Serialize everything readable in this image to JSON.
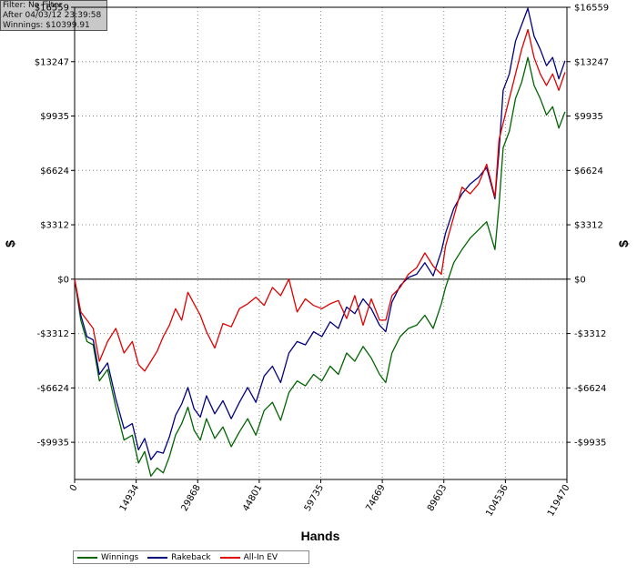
{
  "info": {
    "filter": "Filter: No Filter",
    "after": "After 04/03/12 23:39:58",
    "winnings": "Winnings: $10399.91"
  },
  "chart_data": {
    "type": "line",
    "xlabel": "Hands",
    "ylabel": "$",
    "xlim": [
      0,
      119470
    ],
    "ylim": [
      -12200,
      16559
    ],
    "x_ticks": [
      0,
      14934,
      29868,
      44801,
      59735,
      74669,
      89603,
      104536,
      119470
    ],
    "y_ticks": [
      16559,
      13247,
      9935,
      6624,
      3312,
      0,
      -3312,
      -6624,
      -9935
    ],
    "y_tick_labels": [
      "$16559",
      "$13247",
      "$9935",
      "$6624",
      "$3312",
      "$0",
      "-$3312",
      "-$6624",
      "-$9935"
    ],
    "grid": true,
    "legend_position": "bottom-left",
    "series": [
      {
        "name": "Winnings",
        "color": "#006400",
        "x": [
          0,
          1500,
          3000,
          4500,
          6000,
          8000,
          10000,
          12000,
          14000,
          15500,
          17000,
          18500,
          20000,
          21500,
          23000,
          24500,
          26000,
          27500,
          29000,
          30500,
          32000,
          34000,
          36000,
          38000,
          40000,
          42000,
          44000,
          46000,
          48000,
          50000,
          52000,
          54000,
          56000,
          58000,
          60000,
          62000,
          64000,
          66000,
          68000,
          70000,
          72000,
          74000,
          75500,
          77000,
          79000,
          81000,
          83000,
          85000,
          87000,
          89000,
          90000,
          92000,
          94000,
          96000,
          98000,
          100000,
          102000,
          103000,
          104000,
          105500,
          107000,
          108500,
          110000,
          111500,
          113000,
          114500,
          116000,
          117500,
          119000
        ],
        "values": [
          0,
          -2500,
          -3800,
          -4000,
          -6200,
          -5500,
          -7800,
          -9800,
          -9500,
          -11200,
          -10500,
          -12000,
          -11500,
          -11800,
          -10800,
          -9500,
          -8800,
          -7800,
          -9200,
          -9800,
          -8500,
          -9700,
          -9000,
          -10200,
          -9300,
          -8500,
          -9500,
          -8000,
          -7500,
          -8600,
          -6900,
          -6200,
          -6500,
          -5800,
          -6200,
          -5300,
          -5800,
          -4500,
          -5000,
          -4100,
          -4800,
          -5800,
          -6300,
          -4500,
          -3500,
          -3000,
          -2800,
          -2200,
          -3000,
          -1500,
          -500,
          1000,
          1800,
          2500,
          3000,
          3500,
          1800,
          4500,
          8000,
          9000,
          11000,
          12000,
          13500,
          11800,
          11000,
          10000,
          10500,
          9200,
          10200
        ]
      },
      {
        "name": "Rakeback",
        "color": "#00007f",
        "x": [
          0,
          1500,
          3000,
          4500,
          6000,
          8000,
          10000,
          12000,
          14000,
          15500,
          17000,
          18500,
          20000,
          21500,
          23000,
          24500,
          26000,
          27500,
          29000,
          30500,
          32000,
          34000,
          36000,
          38000,
          40000,
          42000,
          44000,
          46000,
          48000,
          50000,
          52000,
          54000,
          56000,
          58000,
          60000,
          62000,
          64000,
          66000,
          68000,
          70000,
          72000,
          74000,
          75500,
          77000,
          79000,
          81000,
          83000,
          85000,
          87000,
          89000,
          90000,
          92000,
          94000,
          96000,
          98000,
          100000,
          102000,
          103000,
          104000,
          105500,
          107000,
          108500,
          110000,
          111500,
          113000,
          114500,
          116000,
          117500,
          119000
        ],
        "values": [
          0,
          -2200,
          -3500,
          -3700,
          -5800,
          -5100,
          -7300,
          -9100,
          -8800,
          -10400,
          -9700,
          -11000,
          -10500,
          -10600,
          -9600,
          -8300,
          -7600,
          -6600,
          -7900,
          -8400,
          -7100,
          -8200,
          -7400,
          -8500,
          -7500,
          -6600,
          -7500,
          -5900,
          -5300,
          -6300,
          -4500,
          -3800,
          -4000,
          -3200,
          -3500,
          -2600,
          -3000,
          -1700,
          -2100,
          -1200,
          -1800,
          -2800,
          -3200,
          -1400,
          -400,
          100,
          300,
          1000,
          200,
          1700,
          2800,
          4300,
          5200,
          5800,
          6200,
          6800,
          4900,
          7800,
          11500,
          12500,
          14500,
          15500,
          16500,
          14800,
          14000,
          13000,
          13500,
          12200,
          13300
        ]
      },
      {
        "name": "All-In EV",
        "color": "#e00000",
        "x": [
          0,
          1500,
          3000,
          4500,
          6000,
          8000,
          10000,
          12000,
          14000,
          15500,
          17000,
          18500,
          20000,
          21500,
          23000,
          24500,
          26000,
          27500,
          29000,
          30500,
          32000,
          34000,
          36000,
          38000,
          40000,
          42000,
          44000,
          46000,
          48000,
          50000,
          52000,
          54000,
          56000,
          58000,
          60000,
          62000,
          64000,
          66000,
          68000,
          70000,
          72000,
          74000,
          75500,
          77000,
          79000,
          81000,
          83000,
          85000,
          87000,
          89000,
          90000,
          92000,
          94000,
          96000,
          98000,
          100000,
          102000,
          103000,
          104000,
          105500,
          107000,
          108500,
          110000,
          111500,
          113000,
          114500,
          116000,
          117500,
          119000
        ],
        "values": [
          0,
          -2000,
          -2500,
          -3000,
          -5000,
          -3800,
          -3000,
          -4500,
          -3800,
          -5200,
          -5600,
          -5000,
          -4400,
          -3500,
          -2800,
          -1800,
          -2500,
          -800,
          -1500,
          -2200,
          -3200,
          -4200,
          -2700,
          -2900,
          -1800,
          -1500,
          -1100,
          -1600,
          -500,
          -1000,
          0,
          -2000,
          -1200,
          -1600,
          -1800,
          -1500,
          -1300,
          -2400,
          -1000,
          -2800,
          -1200,
          -2500,
          -2500,
          -1000,
          -500,
          300,
          700,
          1600,
          800,
          300,
          2000,
          3800,
          5600,
          5200,
          5800,
          7000,
          5000,
          8500,
          9500,
          11000,
          12500,
          14000,
          15200,
          13500,
          12500,
          11800,
          12500,
          11500,
          12600
        ]
      }
    ]
  }
}
